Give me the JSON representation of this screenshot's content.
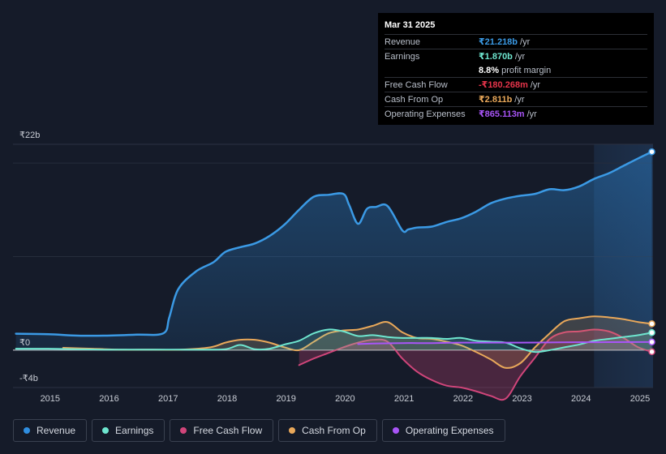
{
  "tooltip": {
    "date": "Mar 31 2025",
    "rows": [
      {
        "label": "Revenue",
        "value": "₹21.218b",
        "unit": "/yr",
        "color": "#3b9ae5"
      },
      {
        "label": "Earnings",
        "value": "₹1.870b",
        "unit": "/yr",
        "color": "#6ee6cf"
      },
      {
        "label": "",
        "value": "8.8%",
        "unit": "profit margin",
        "color": "#ffffff"
      },
      {
        "label": "Free Cash Flow",
        "value": "-₹180.268m",
        "unit": "/yr",
        "color": "#e5344a"
      },
      {
        "label": "Cash From Op",
        "value": "₹2.811b",
        "unit": "/yr",
        "color": "#e9a85a"
      },
      {
        "label": "Operating Expenses",
        "value": "₹865.113m",
        "unit": "/yr",
        "color": "#a855f7"
      }
    ]
  },
  "legend": [
    {
      "label": "Revenue",
      "color": "#2f8ee0"
    },
    {
      "label": "Earnings",
      "color": "#6ee6cf"
    },
    {
      "label": "Free Cash Flow",
      "color": "#d0457a"
    },
    {
      "label": "Cash From Op",
      "color": "#e9a85a"
    },
    {
      "label": "Operating Expenses",
      "color": "#a855f7"
    }
  ],
  "chart_data": {
    "type": "line",
    "title": "",
    "xlabel": "",
    "ylabel": "",
    "units": "₹ billions",
    "xlim": [
      2014.4,
      2025.25
    ],
    "ylim": [
      -4,
      22
    ],
    "y_tick_labels": [
      {
        "value": 22,
        "label": "₹22b"
      },
      {
        "value": 0,
        "label": "₹0"
      },
      {
        "value": -4,
        "label": "-₹4b"
      }
    ],
    "x_ticks": [
      2015,
      2016,
      2017,
      2018,
      2019,
      2020,
      2021,
      2022,
      2023,
      2024,
      2025
    ],
    "highlight_from": 2024.25,
    "series": [
      {
        "name": "Revenue",
        "color": "#3b9ae5",
        "fill": true,
        "x": [
          2014.45,
          2015.0,
          2015.5,
          2016.0,
          2016.5,
          2016.95,
          2017.05,
          2017.2,
          2017.5,
          2017.8,
          2018.0,
          2018.25,
          2018.5,
          2018.75,
          2019.0,
          2019.25,
          2019.5,
          2019.75,
          2020.0,
          2020.1,
          2020.25,
          2020.4,
          2020.55,
          2020.75,
          2021.0,
          2021.1,
          2021.25,
          2021.5,
          2021.75,
          2022.0,
          2022.25,
          2022.5,
          2022.75,
          2023.0,
          2023.25,
          2023.5,
          2023.75,
          2024.0,
          2024.25,
          2024.5,
          2024.75,
          2025.0,
          2025.23
        ],
        "y": [
          1.75,
          1.7,
          1.55,
          1.55,
          1.65,
          1.8,
          3.5,
          6.5,
          8.4,
          9.4,
          10.5,
          11.0,
          11.4,
          12.2,
          13.4,
          15.0,
          16.4,
          16.6,
          16.7,
          15.5,
          13.5,
          15.1,
          15.3,
          15.4,
          12.8,
          12.9,
          13.1,
          13.2,
          13.7,
          14.1,
          14.8,
          15.7,
          16.2,
          16.5,
          16.7,
          17.2,
          17.1,
          17.5,
          18.3,
          18.9,
          19.7,
          20.5,
          21.2
        ]
      },
      {
        "name": "Earnings",
        "color": "#6ee6cf",
        "fill": true,
        "x": [
          2014.45,
          2015.0,
          2015.5,
          2016.0,
          2016.5,
          2017.0,
          2017.5,
          2018.0,
          2018.25,
          2018.5,
          2018.75,
          2019.0,
          2019.25,
          2019.5,
          2019.75,
          2020.0,
          2020.25,
          2020.5,
          2020.75,
          2021.0,
          2021.25,
          2021.5,
          2021.75,
          2022.0,
          2022.25,
          2022.5,
          2022.75,
          2023.0,
          2023.25,
          2023.5,
          2023.75,
          2024.0,
          2024.25,
          2024.5,
          2024.75,
          2025.0,
          2025.23
        ],
        "y": [
          0.15,
          0.15,
          0.1,
          0.05,
          0.05,
          0.05,
          0.05,
          0.1,
          0.55,
          0.1,
          0.15,
          0.6,
          1.0,
          1.8,
          2.2,
          2.0,
          1.5,
          1.6,
          1.4,
          1.3,
          1.3,
          1.3,
          1.2,
          1.3,
          1.0,
          0.9,
          0.8,
          0.2,
          -0.2,
          0.0,
          0.3,
          0.6,
          1.0,
          1.2,
          1.4,
          1.6,
          1.87
        ]
      },
      {
        "name": "Free Cash Flow",
        "color": "#d0457a",
        "fill": true,
        "x": [
          2019.25,
          2019.5,
          2019.75,
          2020.0,
          2020.25,
          2020.5,
          2020.75,
          2021.0,
          2021.25,
          2021.5,
          2021.75,
          2022.0,
          2022.25,
          2022.5,
          2022.75,
          2023.0,
          2023.25,
          2023.5,
          2023.75,
          2024.0,
          2024.25,
          2024.5,
          2024.75,
          2025.0,
          2025.23
        ],
        "y": [
          -1.6,
          -0.9,
          -0.3,
          0.3,
          0.8,
          1.1,
          0.9,
          -0.9,
          -2.3,
          -3.2,
          -3.8,
          -4.0,
          -4.4,
          -4.9,
          -5.2,
          -2.8,
          -0.8,
          1.2,
          1.9,
          2.0,
          2.2,
          2.0,
          1.3,
          0.3,
          -0.18
        ]
      },
      {
        "name": "Cash From Op",
        "color": "#e9a85a",
        "fill": true,
        "x": [
          2015.25,
          2015.75,
          2016.25,
          2016.75,
          2017.25,
          2017.75,
          2018.0,
          2018.25,
          2018.5,
          2018.75,
          2019.0,
          2019.25,
          2019.5,
          2019.75,
          2020.0,
          2020.25,
          2020.5,
          2020.75,
          2021.0,
          2021.25,
          2021.5,
          2021.75,
          2022.0,
          2022.25,
          2022.5,
          2022.75,
          2023.0,
          2023.25,
          2023.5,
          2023.75,
          2024.0,
          2024.25,
          2024.5,
          2024.75,
          2025.0,
          2025.23
        ],
        "y": [
          0.25,
          0.15,
          0.05,
          0.05,
          0.05,
          0.3,
          0.8,
          1.1,
          1.1,
          0.8,
          0.3,
          0.0,
          0.9,
          1.8,
          2.1,
          2.2,
          2.6,
          3.0,
          1.9,
          1.3,
          1.2,
          0.9,
          0.5,
          -0.2,
          -1.0,
          -1.9,
          -1.4,
          0.3,
          1.8,
          3.1,
          3.4,
          3.6,
          3.5,
          3.3,
          3.0,
          2.81
        ]
      },
      {
        "name": "Operating Expenses",
        "color": "#a855f7",
        "fill": false,
        "x": [
          2020.25,
          2020.5,
          2021.0,
          2021.5,
          2022.0,
          2022.5,
          2023.0,
          2023.5,
          2024.0,
          2024.5,
          2025.0,
          2025.23
        ],
        "y": [
          0.65,
          0.7,
          0.75,
          0.75,
          0.8,
          0.8,
          0.8,
          0.82,
          0.84,
          0.85,
          0.86,
          0.865
        ]
      }
    ]
  }
}
